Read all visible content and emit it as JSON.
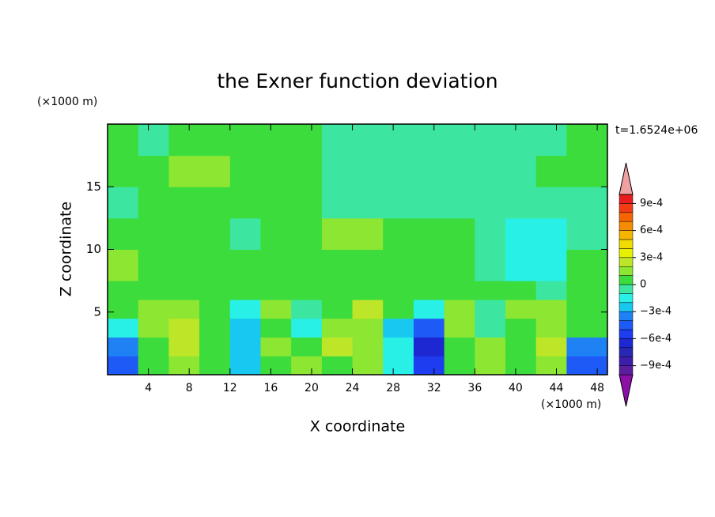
{
  "chart_data": {
    "type": "contour",
    "title": "the Exner function deviation",
    "x_label": "X coordinate",
    "y_label": "Z coordinate",
    "x_unit": "(×1000 m)",
    "y_unit": "(×1000 m)",
    "annotation": "t=1.6524e+06",
    "xlim": [
      0,
      49
    ],
    "ylim": [
      0,
      20
    ],
    "xticks": [
      4,
      8,
      12,
      16,
      20,
      24,
      28,
      32,
      36,
      40,
      44,
      48
    ],
    "yticks": [
      5,
      10,
      15
    ],
    "x_edges": [
      0,
      3,
      6,
      9,
      12,
      15,
      18,
      21,
      24,
      27,
      30,
      33,
      36,
      39,
      42,
      45,
      49
    ],
    "y_edges": [
      0,
      1.5,
      3,
      4.5,
      6,
      7.5,
      10,
      12.5,
      15,
      17.5,
      20
    ],
    "z": [
      [
        -0.0005,
        5e-05,
        0.00015,
        5e-05,
        -0.00025,
        5e-05,
        0.00015,
        5e-05,
        0.00015,
        -0.00015,
        -0.00055,
        5e-05,
        0.00015,
        5e-05,
        0.00015,
        -0.00045
      ],
      [
        -0.00035,
        5e-05,
        0.00025,
        5e-05,
        -0.00025,
        0.00015,
        5e-05,
        0.00025,
        0.00015,
        -0.00015,
        -0.00065,
        5e-05,
        0.00015,
        5e-05,
        0.00025,
        -0.00035
      ],
      [
        -0.00015,
        0.00015,
        0.00025,
        5e-05,
        -0.00025,
        5e-05,
        -0.00015,
        0.00015,
        0.00015,
        -0.00025,
        -0.00045,
        0.00015,
        -5e-05,
        5e-05,
        0.00015,
        5e-05
      ],
      [
        5e-05,
        0.00015,
        0.00015,
        5e-05,
        -0.00015,
        0.00015,
        -5e-05,
        5e-05,
        0.00025,
        5e-05,
        -0.00015,
        0.00015,
        -5e-05,
        0.00015,
        0.00015,
        5e-05
      ],
      [
        5e-05,
        5e-05,
        5e-05,
        5e-05,
        5e-05,
        5e-05,
        5e-05,
        5e-05,
        5e-05,
        5e-05,
        5e-05,
        5e-05,
        5e-05,
        5e-05,
        -5e-05,
        5e-05
      ],
      [
        0.00015,
        5e-05,
        5e-05,
        5e-05,
        5e-05,
        5e-05,
        5e-05,
        5e-05,
        5e-05,
        5e-05,
        5e-05,
        5e-05,
        -5e-05,
        -0.00015,
        -0.00015,
        5e-05
      ],
      [
        5e-05,
        5e-05,
        5e-05,
        5e-05,
        -5e-05,
        5e-05,
        5e-05,
        0.00015,
        0.00015,
        5e-05,
        5e-05,
        5e-05,
        -5e-05,
        -0.00015,
        -0.00015,
        -5e-05
      ],
      [
        -5e-05,
        5e-05,
        5e-05,
        5e-05,
        5e-05,
        5e-05,
        5e-05,
        -5e-05,
        -5e-05,
        -5e-05,
        -5e-05,
        -5e-05,
        -5e-05,
        -5e-05,
        -5e-05,
        -5e-05
      ],
      [
        5e-05,
        5e-05,
        0.00015,
        0.00015,
        5e-05,
        5e-05,
        5e-05,
        -5e-05,
        -5e-05,
        -5e-05,
        -5e-05,
        -5e-05,
        -5e-05,
        -5e-05,
        5e-05,
        5e-05
      ],
      [
        5e-05,
        -5e-05,
        5e-05,
        5e-05,
        5e-05,
        5e-05,
        5e-05,
        -5e-05,
        -5e-05,
        -5e-05,
        -5e-05,
        -5e-05,
        -5e-05,
        -5e-05,
        -5e-05,
        5e-05
      ]
    ],
    "levels": [
      -0.001,
      -0.0009,
      -0.0008,
      -0.0007,
      -0.0006,
      -0.0005,
      -0.0004,
      -0.0003,
      -0.0002,
      -0.0001,
      0,
      0.0001,
      0.0002,
      0.0003,
      0.0004,
      0.0005,
      0.0006,
      0.0007,
      0.0008,
      0.0009,
      0.001
    ],
    "colors": [
      "#8c10a8",
      "#5a1e9c",
      "#3c1eaa",
      "#2828b4",
      "#1e28d2",
      "#1e3cf0",
      "#1e5af5",
      "#1e82f5",
      "#18c8f0",
      "#28f0e6",
      "#3ce6a0",
      "#3cdc3c",
      "#8ce632",
      "#bee628",
      "#e6f000",
      "#f0dc00",
      "#f5b400",
      "#f58c00",
      "#f56400",
      "#f03c14",
      "#e61e1e",
      "#f0a0a0"
    ],
    "colorbar_ticks": [
      {
        "value": 0.0009,
        "label": "9e-4"
      },
      {
        "value": 0.0006,
        "label": "6e-4"
      },
      {
        "value": 0.0003,
        "label": "3e-4"
      },
      0,
      {
        "value": -0.0003,
        "label": "−3e-4"
      },
      {
        "value": -0.0006,
        "label": "−6e-4"
      },
      {
        "value": -0.0009,
        "label": "−9e-4"
      }
    ]
  }
}
